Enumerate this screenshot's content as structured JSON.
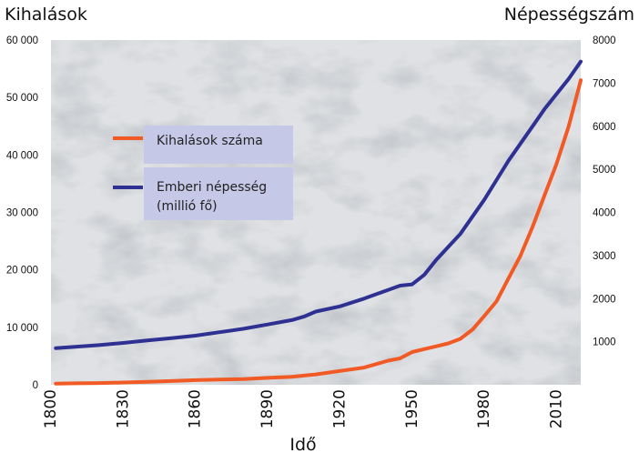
{
  "chart_data": {
    "type": "line",
    "xlabel": "Idő",
    "ylabel_left": "Kihalások",
    "ylabel_right": "Népességszám",
    "x_ticks": [
      "1800",
      "1830",
      "1860",
      "1890",
      "1920",
      "1950",
      "1980",
      "2010"
    ],
    "y_left_ticks": [
      "0",
      "10 000",
      "20 000",
      "30 000",
      "40 000",
      "50 000",
      "60 000"
    ],
    "y_right_ticks": [
      "1000",
      "2000",
      "3000",
      "4000",
      "5000",
      "6000",
      "7000",
      "8000"
    ],
    "xlim": [
      1800,
      2020
    ],
    "ylim_left": [
      0,
      60000
    ],
    "ylim_right": [
      0,
      8000
    ],
    "legend_placement": "upper-left",
    "series": [
      {
        "name": "Kihalások száma",
        "axis": "left",
        "color": "#f15a24",
        "x": [
          1802,
          1810,
          1820,
          1830,
          1840,
          1850,
          1860,
          1870,
          1880,
          1890,
          1900,
          1905,
          1910,
          1920,
          1930,
          1935,
          1940,
          1945,
          1950,
          1955,
          1960,
          1965,
          1970,
          1975,
          1980,
          1985,
          1990,
          1995,
          2000,
          2005,
          2010,
          2015,
          2020
        ],
        "y": [
          200,
          250,
          300,
          400,
          500,
          650,
          800,
          900,
          1000,
          1200,
          1400,
          1600,
          1800,
          2400,
          3000,
          3600,
          4200,
          4600,
          5700,
          6200,
          6700,
          7200,
          8000,
          9600,
          12000,
          14500,
          18500,
          22500,
          27500,
          33000,
          38500,
          45000,
          53000
        ]
      },
      {
        "name": "Emberi népesség (millió fő)",
        "axis": "right",
        "color": "#2e3192",
        "x": [
          1802,
          1810,
          1820,
          1830,
          1840,
          1850,
          1860,
          1870,
          1880,
          1890,
          1900,
          1905,
          1910,
          1920,
          1930,
          1935,
          1940,
          1945,
          1950,
          1955,
          1960,
          1965,
          1970,
          1975,
          1980,
          1985,
          1990,
          1995,
          2000,
          2005,
          2010,
          2015,
          2020
        ],
        "y": [
          850,
          880,
          920,
          970,
          1030,
          1080,
          1140,
          1220,
          1300,
          1400,
          1500,
          1580,
          1700,
          1820,
          2000,
          2100,
          2200,
          2300,
          2330,
          2550,
          2900,
          3200,
          3500,
          3900,
          4300,
          4750,
          5200,
          5600,
          6000,
          6400,
          6750,
          7100,
          7500
        ]
      }
    ]
  }
}
